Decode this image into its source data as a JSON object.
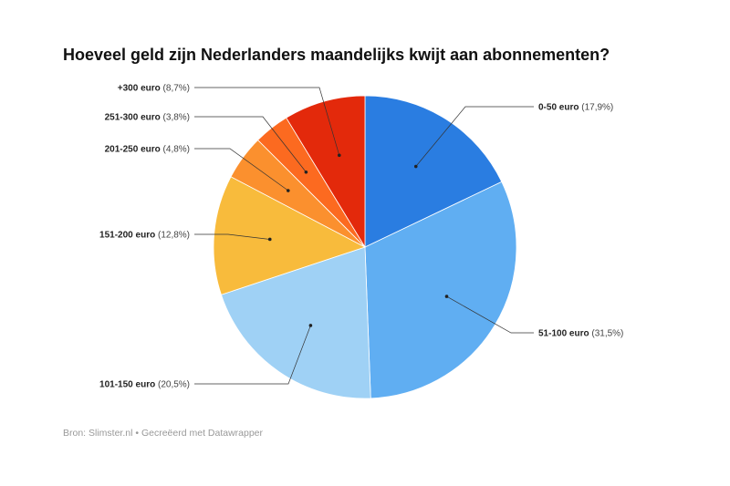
{
  "chart_data": {
    "type": "pie",
    "title": "Hoeveel geld zijn Nederlanders maandelijks kwijt aan abonnementen?",
    "source": "Bron: Slimster.nl • Gecreëerd met Datawrapper",
    "slices": [
      {
        "label": "0-50 euro",
        "value": 17.9,
        "value_label": "(17,9%)",
        "color": "#2a7de1"
      },
      {
        "label": "51-100 euro",
        "value": 31.5,
        "value_label": "(31,5%)",
        "color": "#60aef2"
      },
      {
        "label": "101-150 euro",
        "value": 20.5,
        "value_label": "(20,5%)",
        "color": "#9fd1f5"
      },
      {
        "label": "151-200 euro",
        "value": 12.8,
        "value_label": "(12,8%)",
        "color": "#f8bb3c"
      },
      {
        "label": "201-250 euro",
        "value": 4.8,
        "value_label": "(4,8%)",
        "color": "#fb902e"
      },
      {
        "label": "251-300 euro",
        "value": 3.8,
        "value_label": "(3,8%)",
        "color": "#fc6a20"
      },
      {
        "label": "+300 euro",
        "value": 8.7,
        "value_label": "(8,7%)",
        "color": "#e3290b"
      }
    ]
  }
}
